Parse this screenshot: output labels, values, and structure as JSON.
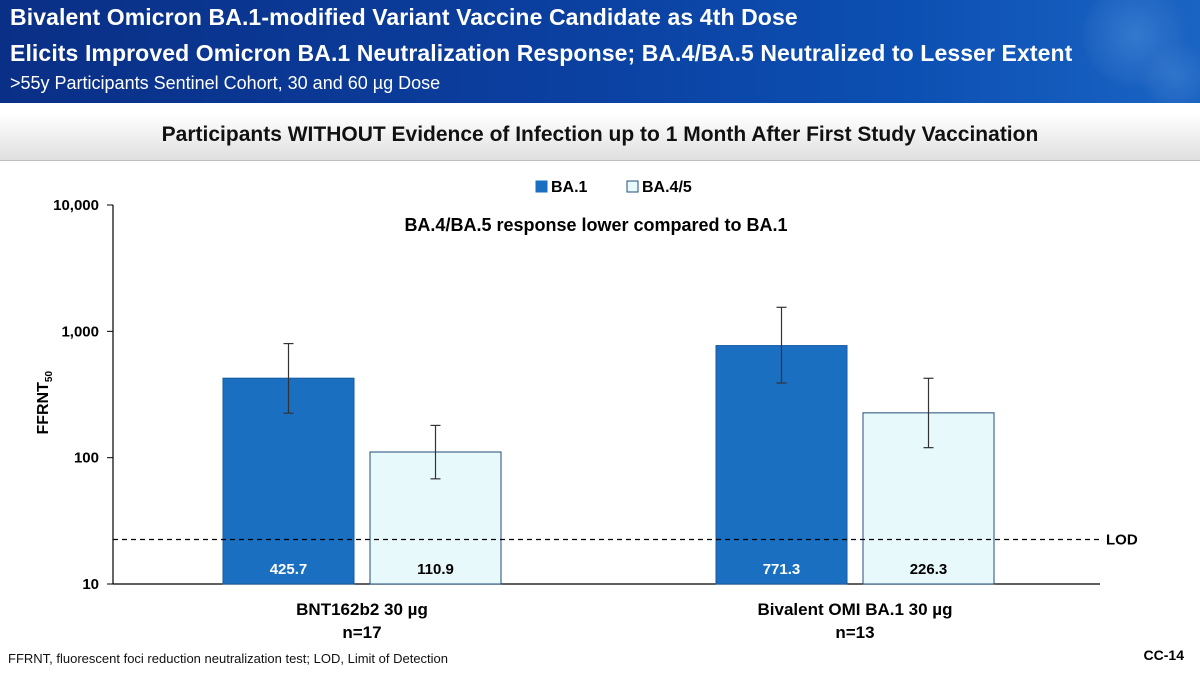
{
  "header": {
    "title_line_1": "Bivalent Omicron BA.1-modified Variant Vaccine Candidate as 4th Dose",
    "title_line_2": "Elicits Improved Omicron BA.1 Neutralization Response; BA.4/BA.5 Neutralized to Lesser Extent",
    "subtitle": ">55y Participants Sentinel Cohort, 30 and 60 µg Dose"
  },
  "banner": "Participants WITHOUT Evidence of Infection up to 1 Month After First Study Vaccination",
  "chart_data": {
    "type": "bar",
    "scale": "log",
    "ylim": [
      10,
      10000
    ],
    "ylabel": "FFRNT",
    "ylabel_subscript": "50",
    "yticks": [
      10,
      100,
      1000,
      10000
    ],
    "ytick_labels": [
      "10",
      "100",
      "1,000",
      "10,000"
    ],
    "annotation": "BA.4/BA.5 response lower compared to BA.1",
    "legend_position": "top-center",
    "groups": [
      {
        "label": "BNT162b2 30 µg",
        "n": "n=17"
      },
      {
        "label": "Bivalent OMI BA.1 30 µg",
        "n": "n=13"
      }
    ],
    "series": [
      {
        "name": "BA.1",
        "color": "#1a6fc1",
        "values": [
          425.7,
          771.3
        ],
        "value_labels": [
          "425.7",
          "771.3"
        ],
        "ci_low": [
          225,
          390
        ],
        "ci_high": [
          800,
          1550
        ]
      },
      {
        "name": "BA.4/5",
        "color": "#e8f9fb",
        "values": [
          110.9,
          226.3
        ],
        "value_labels": [
          "110.9",
          "226.3"
        ],
        "ci_low": [
          68,
          120
        ],
        "ci_high": [
          180,
          425
        ]
      }
    ],
    "reference_line": {
      "label": "LOD",
      "value": 22.5
    }
  },
  "footnote": "FFRNT, fluorescent foci reduction neutralization test; LOD, Limit of Detection",
  "slide_number": "CC-14"
}
